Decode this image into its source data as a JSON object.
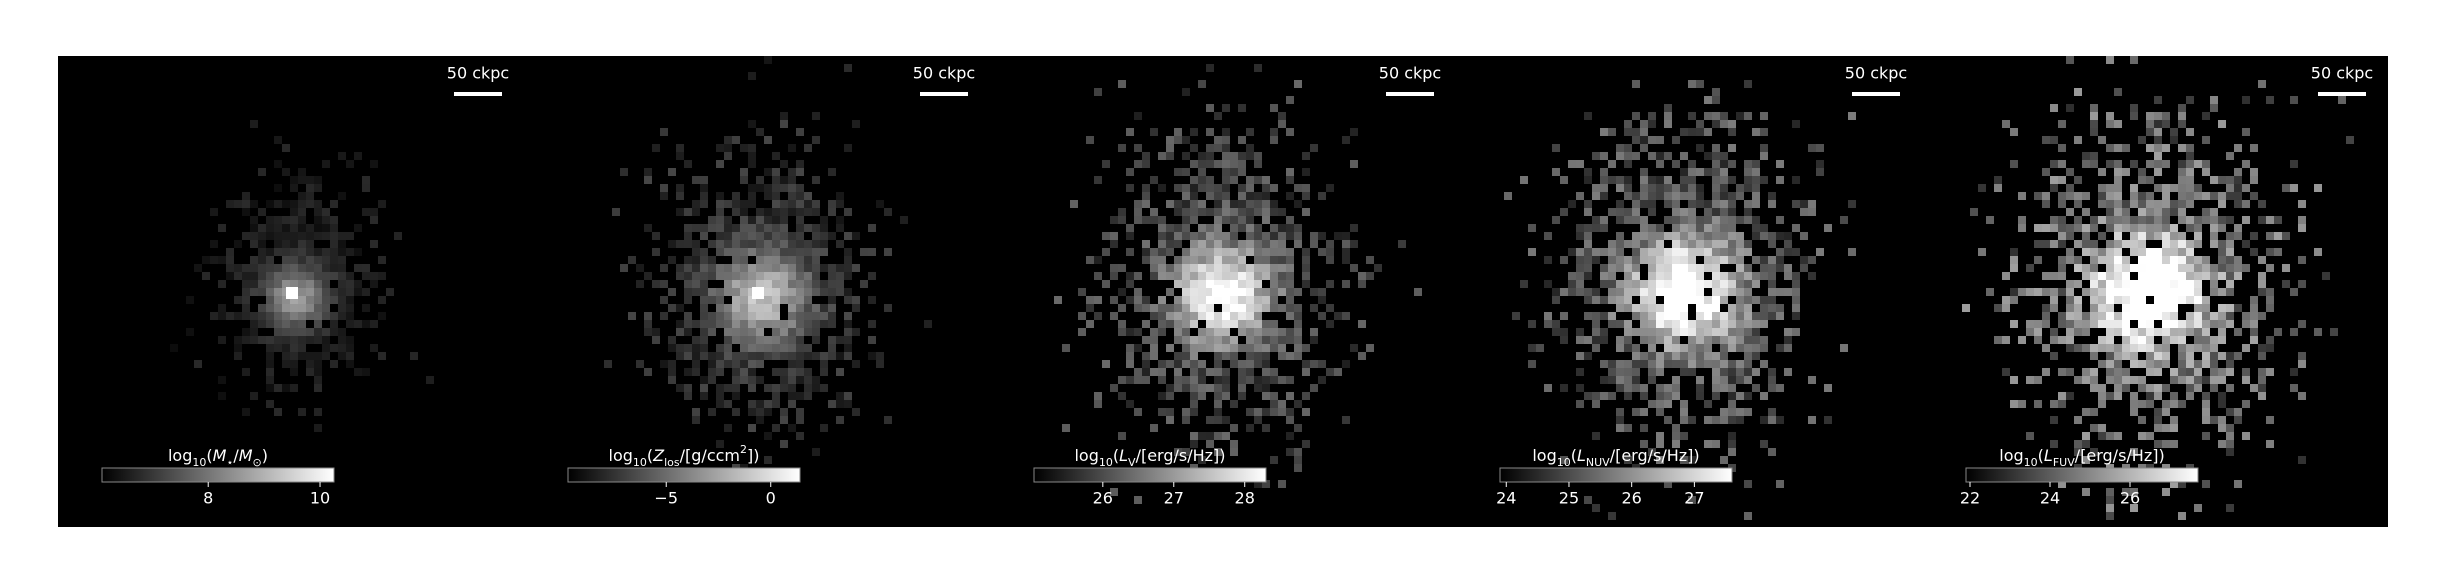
{
  "chart_data": [
    {
      "type": "image",
      "scale_label": "50 ckpc",
      "colorbar_label": [
        {
          "text": "log"
        },
        {
          "text": "10",
          "sub": true
        },
        {
          "text": "("
        },
        {
          "text": "M",
          "italic": true
        },
        {
          "text": "⋆",
          "sub": true
        },
        {
          "text": "/"
        },
        {
          "text": "M",
          "italic": true
        },
        {
          "text": "⊙",
          "sub": true
        },
        {
          "text": ")"
        }
      ],
      "clim": [
        6.1,
        10.25
      ],
      "ticks": [
        8,
        10
      ]
    },
    {
      "type": "image",
      "scale_label": "50 ckpc",
      "colorbar_label": [
        {
          "text": "log"
        },
        {
          "text": "10",
          "sub": true
        },
        {
          "text": "("
        },
        {
          "text": "Z",
          "italic": true
        },
        {
          "text": "los",
          "sub": true
        },
        {
          "text": "/[g/ccm"
        },
        {
          "text": "2",
          "sup": true
        },
        {
          "text": "])"
        }
      ],
      "clim": [
        -9.7,
        1.4
      ],
      "ticks": [
        {
          "value": -5,
          "label": "−5"
        },
        0
      ]
    },
    {
      "type": "image",
      "scale_label": "50 ckpc",
      "colorbar_label": [
        {
          "text": "log"
        },
        {
          "text": "10",
          "sub": true
        },
        {
          "text": "("
        },
        {
          "text": "L",
          "italic": true
        },
        {
          "text": "V",
          "sub": true
        },
        {
          "text": "/[erg/s/Hz])"
        }
      ],
      "clim": [
        25.03,
        28.3
      ],
      "ticks": [
        26,
        27,
        28
      ]
    },
    {
      "type": "image",
      "scale_label": "50 ckpc",
      "colorbar_label": [
        {
          "text": "log"
        },
        {
          "text": "10",
          "sub": true
        },
        {
          "text": "("
        },
        {
          "text": "L",
          "italic": true
        },
        {
          "text": "NUV",
          "sub": true
        },
        {
          "text": "/[erg/s/Hz])"
        }
      ],
      "clim": [
        23.9,
        27.6
      ],
      "ticks": [
        24,
        25,
        26,
        27
      ]
    },
    {
      "type": "image",
      "scale_label": "50 ckpc",
      "colorbar_label": [
        {
          "text": "log"
        },
        {
          "text": "10",
          "sub": true
        },
        {
          "text": "("
        },
        {
          "text": "L",
          "italic": true
        },
        {
          "text": "FUV",
          "sub": true
        },
        {
          "text": "/[erg/s/Hz])"
        }
      ],
      "clim": [
        21.9,
        27.7
      ],
      "ticks": [
        22,
        24,
        26
      ]
    }
  ]
}
